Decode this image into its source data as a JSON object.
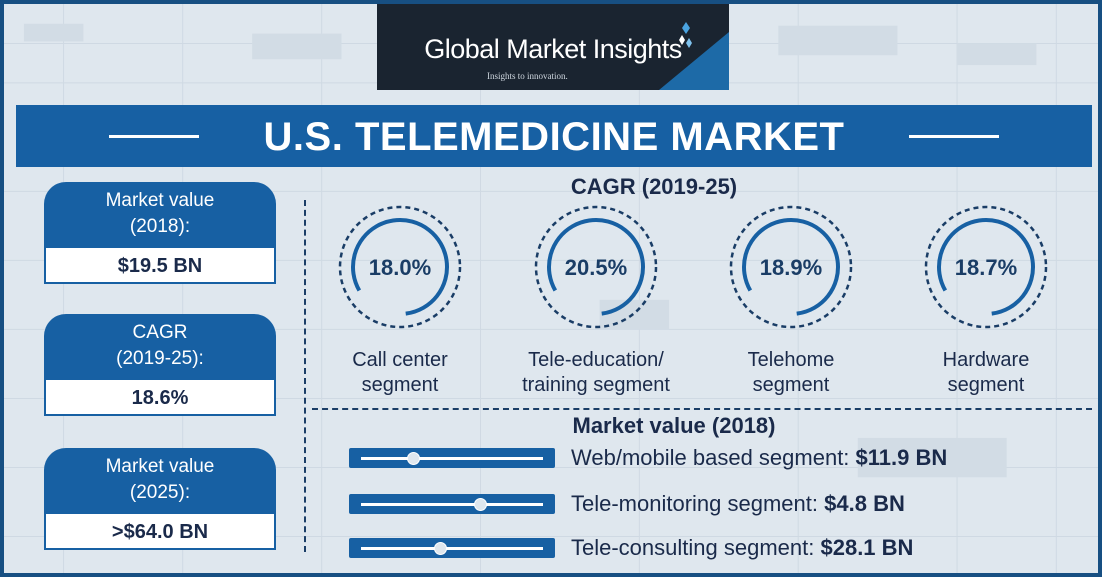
{
  "brand": {
    "name": "Global Market Insights",
    "tagline": "Insights to innovation."
  },
  "title": "U.S. TELEMEDICINE MARKET",
  "stats": [
    {
      "label_lines": [
        "Market value",
        "(2018):"
      ],
      "value": "$19.5 BN"
    },
    {
      "label_lines": [
        "CAGR",
        "(2019-25):"
      ],
      "value": "18.6%"
    },
    {
      "label_lines": [
        "Market value",
        "(2025):"
      ],
      "value": ">$64.0 BN"
    }
  ],
  "cagr": {
    "heading": "CAGR (2019-25)",
    "segments": [
      {
        "value": "18.0%",
        "label_lines": [
          "Call center",
          "segment"
        ]
      },
      {
        "value": "20.5%",
        "label_lines": [
          "Tele-education/",
          "training segment"
        ]
      },
      {
        "value": "18.9%",
        "label_lines": [
          "Telehome",
          "segment"
        ]
      },
      {
        "value": "18.7%",
        "label_lines": [
          "Hardware",
          "segment"
        ]
      }
    ]
  },
  "market_value": {
    "heading": "Market value (2018)",
    "rows": [
      {
        "label": "Web/mobile based segment:",
        "value": "$11.9 BN"
      },
      {
        "label": "Tele-monitoring segment:",
        "value": "$4.8 BN"
      },
      {
        "label": "Tele-consulting segment:",
        "value": "$28.1 BN"
      }
    ]
  },
  "colors": {
    "primary_blue": "#1760a3",
    "dark_navy": "#1a2430",
    "text_dark": "#1a2a4a",
    "background": "#dfe7ee"
  }
}
